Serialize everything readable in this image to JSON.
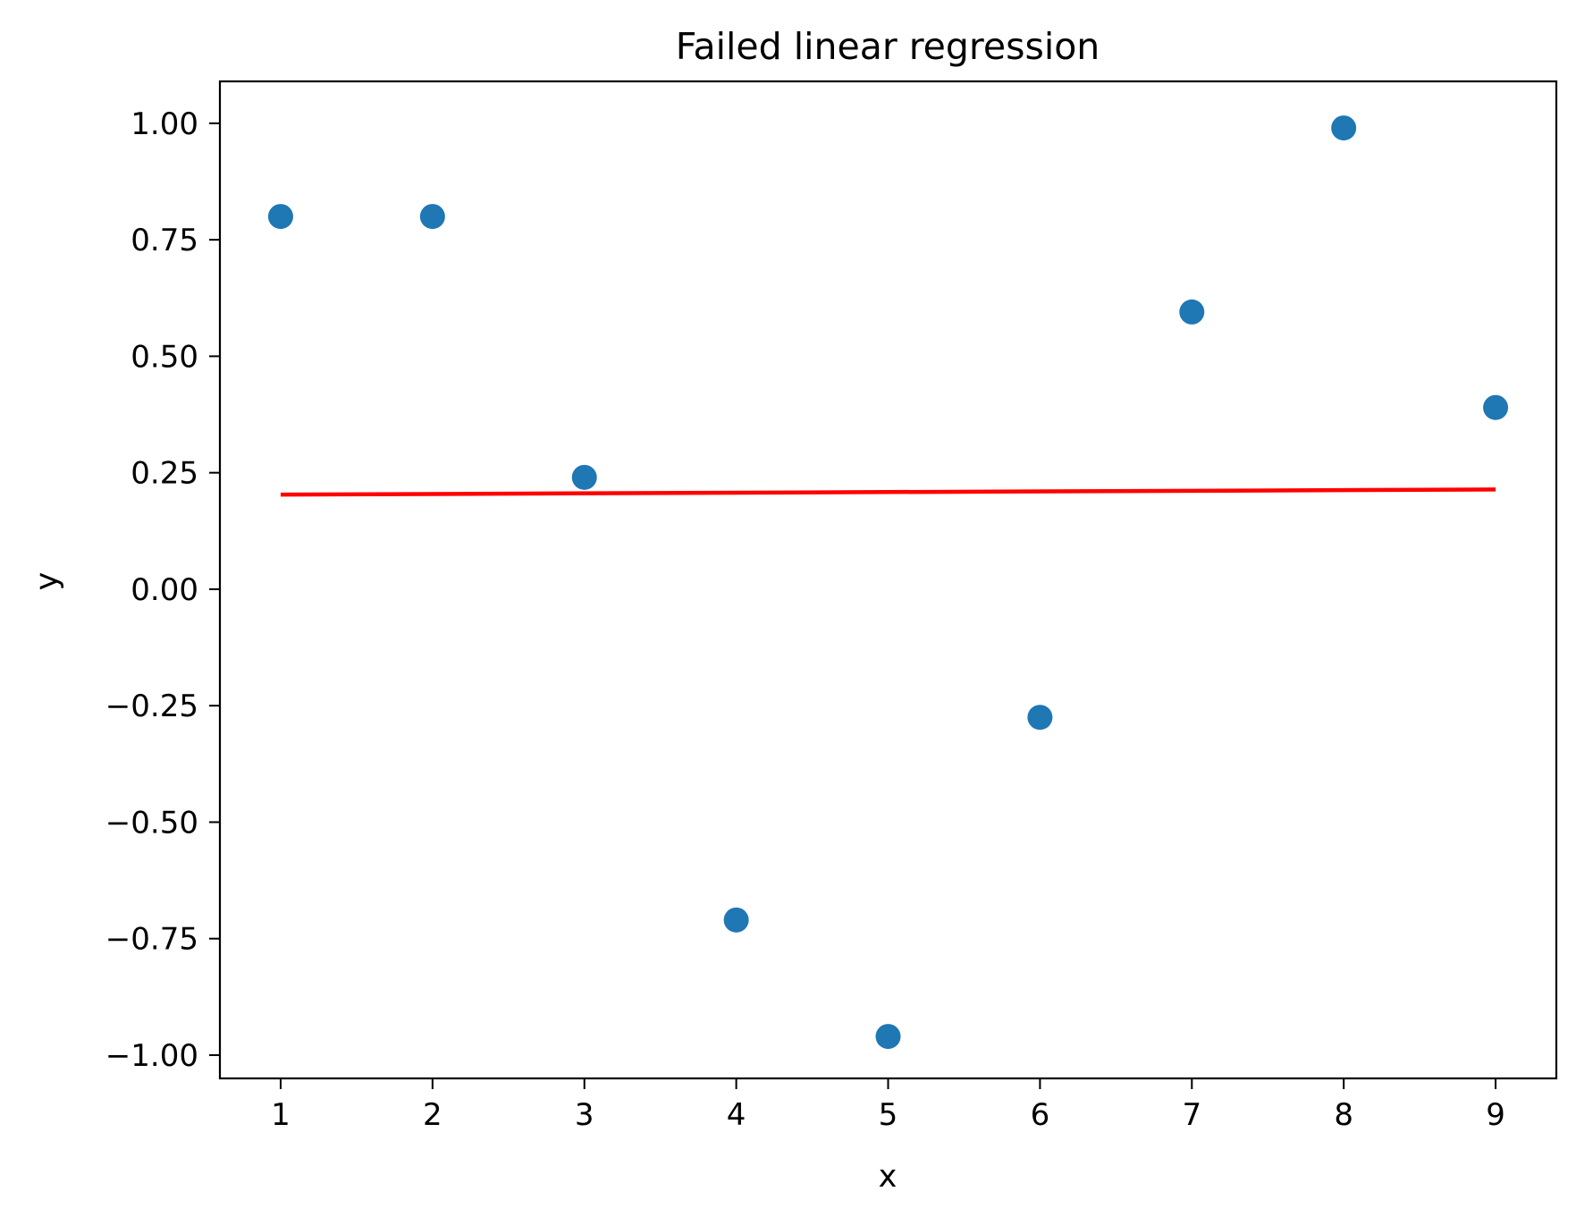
{
  "chart_data": {
    "type": "scatter",
    "title": "Failed linear regression",
    "xlabel": "x",
    "ylabel": "y",
    "xlim": [
      0.6,
      9.4
    ],
    "ylim": [
      -1.05,
      1.09
    ],
    "grid": false,
    "x_ticks": [
      1,
      2,
      3,
      4,
      5,
      6,
      7,
      8,
      9
    ],
    "x_tick_labels": [
      "1",
      "2",
      "3",
      "4",
      "5",
      "6",
      "7",
      "8",
      "9"
    ],
    "y_ticks": [
      1.0,
      0.75,
      0.5,
      0.25,
      0.0,
      -0.25,
      -0.5,
      -0.75,
      -1.0
    ],
    "y_tick_labels": [
      "1.00",
      "0.75",
      "0.50",
      "0.25",
      "0.00",
      "−0.25",
      "−0.50",
      "−0.75",
      "−1.00"
    ],
    "series": [
      {
        "type": "scatter",
        "color": "#1f77b4",
        "x": [
          1,
          2,
          3,
          4,
          5,
          6,
          7,
          8,
          9
        ],
        "y": [
          0.8,
          0.8,
          0.24,
          -0.71,
          -0.96,
          -0.275,
          0.595,
          0.99,
          0.39
        ]
      },
      {
        "type": "line",
        "color": "#ff0000",
        "x": [
          1,
          9
        ],
        "y": [
          0.203,
          0.214
        ]
      }
    ]
  }
}
